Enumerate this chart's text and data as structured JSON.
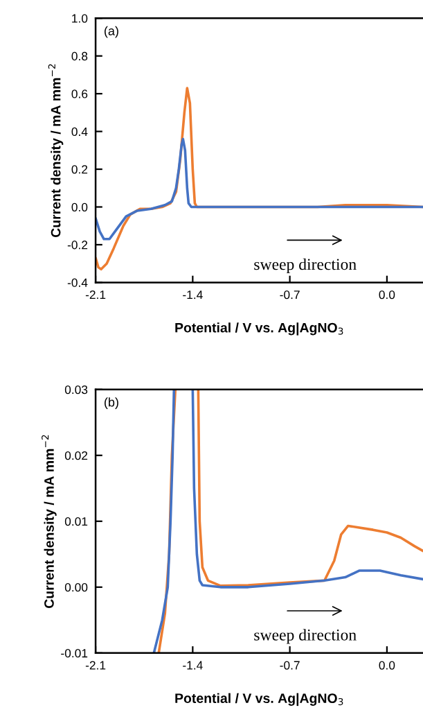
{
  "chart_data": [
    {
      "type": "line",
      "xlabel": "Potential / V vs. Ag|AgNO$_{3}$",
      "ylabel": "Current density / mA mm$^{−2}$",
      "annotations": [
        "(a)",
        "sweep direction"
      ],
      "xlim": [
        -2.1,
        0.26
      ],
      "xticks": [
        -2.1,
        -1.4,
        -0.7,
        {
          "value": 0.0,
          "label": "0.0"
        }
      ],
      "ylim": [
        -0.4,
        1.0
      ],
      "yticks": [
        -0.4,
        -0.2,
        {
          "value": 0.0,
          "label": "0.0"
        },
        0.2,
        0.4,
        0.6,
        0.8,
        {
          "value": 1.0,
          "label": "1.0"
        }
      ],
      "series": [
        {
          "color": "#ed7d31",
          "x": [
            -2.1,
            -2.08,
            -2.06,
            -2.02,
            -1.97,
            -1.9,
            -1.85,
            -1.78,
            -1.7,
            -1.62,
            -1.56,
            -1.52,
            -1.49,
            -1.46,
            -1.44,
            -1.42,
            -1.4,
            -1.385,
            -1.37,
            -1.2,
            -0.5,
            -0.3,
            0.0,
            0.26
          ],
          "values": [
            -0.27,
            -0.32,
            -0.33,
            -0.3,
            -0.22,
            -0.1,
            -0.04,
            -0.01,
            -0.01,
            0.0,
            0.02,
            0.08,
            0.25,
            0.5,
            0.63,
            0.55,
            0.2,
            0.02,
            0.0,
            0.0,
            0.0,
            0.01,
            0.01,
            0.0
          ]
        },
        {
          "color": "#4472c4",
          "x": [
            -2.1,
            -2.07,
            -2.04,
            -2.0,
            -1.95,
            -1.88,
            -1.8,
            -1.7,
            -1.6,
            -1.55,
            -1.52,
            -1.5,
            -1.48,
            -1.47,
            -1.455,
            -1.44,
            -1.43,
            -1.41,
            -1.2,
            -0.5,
            -0.2,
            0.26
          ],
          "values": [
            -0.06,
            -0.13,
            -0.17,
            -0.17,
            -0.12,
            -0.05,
            -0.02,
            -0.01,
            0.01,
            0.03,
            0.1,
            0.2,
            0.33,
            0.36,
            0.3,
            0.1,
            0.02,
            0.0,
            0.0,
            0.0,
            0.0,
            0.0
          ]
        }
      ]
    },
    {
      "type": "line",
      "xlabel": "Potential / V vs. Ag|AgNO$_{3}$",
      "ylabel": "Current density / mA mm$^{−2}$",
      "annotations": [
        "(b)",
        "sweep direction"
      ],
      "xlim": [
        -2.1,
        0.26
      ],
      "xticks": [
        -2.1,
        -1.4,
        -0.7,
        {
          "value": 0.0,
          "label": "0.0"
        }
      ],
      "ylim": [
        -0.01,
        0.03
      ],
      "yticks": [
        {
          "value": -0.01,
          "label": "-0.01"
        },
        {
          "value": 0.0,
          "label": "0.00"
        },
        {
          "value": 0.01,
          "label": "0.01"
        },
        {
          "value": 0.02,
          "label": "0.02"
        },
        {
          "value": 0.03,
          "label": "0.03"
        }
      ],
      "series": [
        {
          "color": "#ed7d31",
          "x": [
            -1.645,
            -1.6,
            -1.57,
            -1.55,
            -1.525,
            -1.45,
            -1.36,
            -1.35,
            -1.33,
            -1.29,
            -1.2,
            -1.0,
            -0.7,
            -0.45,
            -0.38,
            -0.33,
            -0.28,
            -0.1,
            0.0,
            0.1,
            0.2,
            0.26
          ],
          "values": [
            -0.01,
            -0.004,
            0.005,
            0.02,
            0.03,
            null,
            0.03,
            0.01,
            0.003,
            0.001,
            0.0002,
            0.0003,
            0.0007,
            0.001,
            0.004,
            0.008,
            0.0093,
            0.0087,
            0.0083,
            0.0075,
            0.0062,
            0.0055
          ]
        },
        {
          "color": "#4472c4",
          "x": [
            -1.68,
            -1.62,
            -1.58,
            -1.56,
            -1.545,
            -1.535,
            -1.47,
            -1.4,
            -1.39,
            -1.37,
            -1.35,
            -1.33,
            -1.2,
            -1.0,
            -0.7,
            -0.45,
            -0.3,
            -0.2,
            -0.05,
            0.1,
            0.26
          ],
          "values": [
            -0.01,
            -0.005,
            0.0,
            0.01,
            0.02,
            0.03,
            null,
            0.03,
            0.015,
            0.005,
            0.001,
            0.0003,
            0.0,
            0.0,
            0.0005,
            0.001,
            0.0015,
            0.0025,
            0.0025,
            0.0018,
            0.0012
          ]
        }
      ]
    }
  ]
}
